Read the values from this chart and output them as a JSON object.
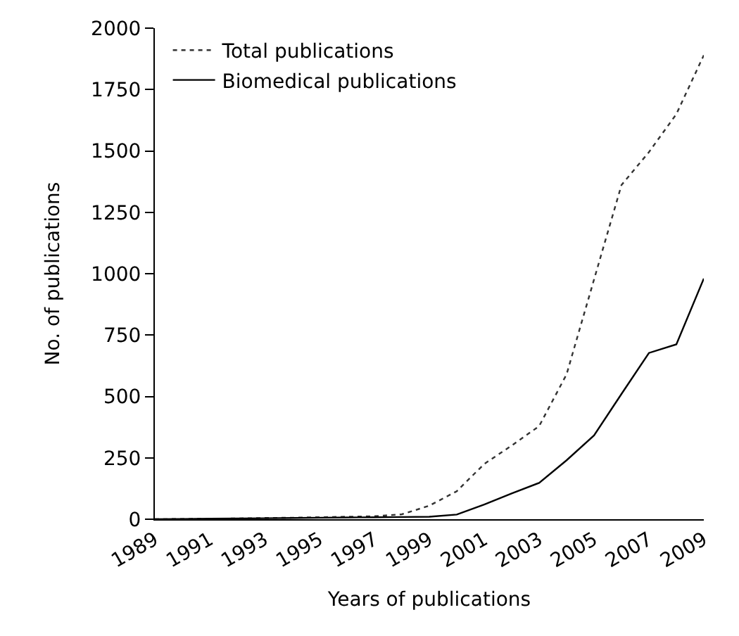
{
  "chart_data": {
    "type": "line",
    "xlabel": "Years of publications",
    "ylabel": "No. of publications",
    "x": [
      1989,
      1990,
      1991,
      1992,
      1993,
      1994,
      1995,
      1996,
      1997,
      1998,
      1999,
      2000,
      2001,
      2002,
      2003,
      2004,
      2005,
      2006,
      2007,
      2008,
      2009
    ],
    "series": [
      {
        "name": "Total publications",
        "color": "#333333",
        "line_style": "dotted",
        "values": [
          0,
          1,
          2,
          3,
          5,
          6,
          8,
          10,
          12,
          20,
          55,
          114,
          225,
          300,
          379,
          590,
          976,
          1361,
          1495,
          1650,
          1890
        ]
      },
      {
        "name": "Biomedical publications",
        "color": "#000000",
        "line_style": "solid",
        "values": [
          0,
          1,
          2,
          3,
          4,
          5,
          6,
          7,
          8,
          9,
          10,
          19,
          60,
          105,
          148,
          240,
          341,
          510,
          677,
          712,
          980
        ]
      }
    ],
    "xlim": [
      1989,
      2009
    ],
    "xticks": [
      1989,
      1991,
      1993,
      1995,
      1997,
      1999,
      2001,
      2003,
      2005,
      2007,
      2009
    ],
    "ylim": [
      0,
      2000
    ],
    "yticks": [
      0,
      250,
      500,
      750,
      1000,
      1250,
      1500,
      1750,
      2000
    ],
    "grid": false,
    "legend": "top left",
    "marker": "none"
  }
}
